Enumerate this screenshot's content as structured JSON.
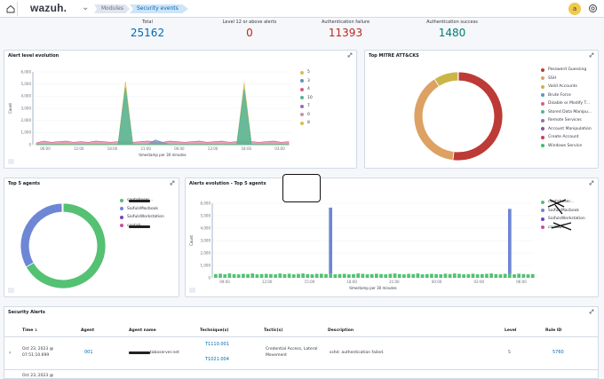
{
  "header": {
    "logo": "wazuh.",
    "breadcrumbs": [
      "Modules",
      "Security events ⓘ"
    ],
    "avatar_initial": "a"
  },
  "stats": [
    {
      "label": "Total",
      "value": "25162",
      "color": "#006bb4"
    },
    {
      "label": "Level 12 or above alerts",
      "value": "0",
      "color": "#bd271e"
    },
    {
      "label": "Authentication failure",
      "value": "11393",
      "color": "#bd271e"
    },
    {
      "label": "Authentication success",
      "value": "1480",
      "color": "#017d73"
    }
  ],
  "alert_level_panel": {
    "title": "Alert level evolution",
    "ylabel": "Count",
    "xlabel": "timestamp per 30 minutes"
  },
  "mitre_panel": {
    "title": "Top MITRE ATT&CKS"
  },
  "top_agents_panel": {
    "title": "Top 5 agents"
  },
  "alerts_evolution_panel": {
    "title": "Alerts evolution - Top 5 agents",
    "ylabel": "Count",
    "xlabel": "timestamp per 30 minutes"
  },
  "chart_data": [
    {
      "type": "area",
      "title": "Alert level evolution",
      "ylabel": "Count",
      "xlabel": "timestamp per 30 minutes",
      "ylim": [
        0,
        6000
      ],
      "yticks": [
        "0",
        "1,000",
        "2,000",
        "3,000",
        "4,000",
        "5,000",
        "6,000"
      ],
      "xticks": [
        "06:00",
        "12:00",
        "18:00",
        "21:00",
        "06:00",
        "12:00",
        "18:00",
        "03:00"
      ],
      "legend_placement": "right",
      "series": [
        {
          "name": "5",
          "color": "#d6bf57",
          "values": [
            20,
            30,
            25,
            40,
            60,
            30,
            25,
            30,
            40,
            35,
            30,
            25,
            5200,
            30,
            40,
            30,
            25,
            30,
            20,
            25,
            30,
            25,
            30,
            25,
            20,
            30,
            25,
            30,
            5100,
            30,
            25,
            20,
            25,
            30,
            25
          ]
        },
        {
          "name": "3",
          "color": "#6092c0",
          "values": [
            0,
            0,
            0,
            0,
            0,
            0,
            0,
            0,
            0,
            0,
            0,
            0,
            0,
            0,
            0,
            0,
            400,
            200,
            0,
            0,
            0,
            0,
            0,
            0,
            0,
            0,
            0,
            0,
            0,
            0,
            0,
            0,
            0,
            0,
            0
          ]
        },
        {
          "name": "4",
          "color": "#d36086",
          "values": [
            150,
            300,
            200,
            250,
            300,
            200,
            250,
            200,
            300,
            250,
            200,
            250,
            300,
            200,
            250,
            300,
            250,
            200,
            300,
            250,
            200,
            250,
            300,
            200,
            250,
            300,
            200,
            250,
            300,
            250,
            200,
            250,
            300,
            200,
            250
          ]
        },
        {
          "name": "10",
          "color": "#54b399",
          "values": [
            20,
            30,
            25,
            30,
            25,
            20,
            30,
            25,
            20,
            30,
            25,
            20,
            4700,
            25,
            30,
            20,
            25,
            30,
            20,
            25,
            30,
            20,
            25,
            30,
            20,
            25,
            30,
            20,
            4600,
            25,
            30,
            20,
            25,
            30,
            20
          ]
        },
        {
          "name": "7",
          "color": "#9170b8",
          "values": [
            10,
            15,
            10,
            12,
            15,
            10,
            12,
            15,
            10,
            12,
            15,
            10,
            15,
            10,
            12,
            15,
            10,
            12,
            15,
            10,
            12,
            15,
            10,
            12,
            15,
            10,
            12,
            15,
            10,
            12,
            15,
            10,
            12,
            15,
            10
          ]
        },
        {
          "name": "0",
          "color": "#ca8eae",
          "values": [
            5,
            5,
            5,
            5,
            5,
            5,
            5,
            5,
            5,
            5,
            5,
            5,
            5,
            5,
            5,
            5,
            5,
            5,
            5,
            5,
            5,
            5,
            5,
            5,
            5,
            5,
            5,
            5,
            5,
            5,
            5,
            5,
            5,
            5,
            5
          ]
        },
        {
          "name": "8",
          "color": "#d6bf57",
          "values": [
            5,
            5,
            5,
            5,
            5,
            5,
            5,
            5,
            5,
            5,
            5,
            5,
            5,
            5,
            5,
            5,
            5,
            5,
            5,
            5,
            5,
            5,
            5,
            5,
            5,
            5,
            5,
            5,
            5,
            5,
            5,
            5,
            5,
            5,
            5
          ]
        }
      ]
    },
    {
      "type": "pie",
      "title": "Top MITRE ATT&CKS",
      "legend_placement": "right",
      "slices": [
        {
          "name": "Password Guessing",
          "value": 52,
          "color": "#bd3a36"
        },
        {
          "name": "SSH",
          "value": 39,
          "color": "#dca163"
        },
        {
          "name": "Valid Accounts",
          "value": 9,
          "color": "#cbb546"
        },
        {
          "name": "Brute Force",
          "value": 0.01,
          "color": "#6092c0"
        },
        {
          "name": "Disable or Modify T...",
          "value": 0.01,
          "color": "#d36086"
        },
        {
          "name": "Stored Data Manipu...",
          "value": 0.01,
          "color": "#54b399"
        },
        {
          "name": "Remote Services",
          "value": 0.01,
          "color": "#9170b8"
        },
        {
          "name": "Account Manipulation",
          "value": 0.01,
          "color": "#8b4fa9"
        },
        {
          "name": "Create Account",
          "value": 0.01,
          "color": "#ca3a6b"
        },
        {
          "name": "Windows Service",
          "value": 0.01,
          "color": "#3ebf6e"
        }
      ]
    },
    {
      "type": "pie",
      "title": "Top 5 agents",
      "legend_placement": "right",
      "slices": [
        {
          "name": "contaboser...",
          "value": 67,
          "color": "#54c173"
        },
        {
          "name": "SaifulsMacbook",
          "value": 33,
          "color": "#6e86d6"
        },
        {
          "name": "SaifulsWorkstation",
          "value": 0.2,
          "color": "#7a3fbf"
        },
        {
          "name": "contab...",
          "value": 0.2,
          "color": "#c84ea3"
        }
      ]
    },
    {
      "type": "bar",
      "title": "Alerts evolution - Top 5 agents",
      "ylabel": "Count",
      "xlabel": "timestamp per 30 minutes",
      "ylim": [
        0,
        6000
      ],
      "yticks": [
        "0",
        "1,000",
        "2,000",
        "3,000",
        "4,000",
        "5,000",
        "6,000"
      ],
      "xticks": [
        "09:00",
        "12:00",
        "15:00",
        "18:00",
        "21:00",
        "00:00",
        "03:00",
        "06:00"
      ],
      "legend_placement": "right",
      "series": [
        {
          "name": "contaboser...",
          "color": "#54c173",
          "values": [
            300,
            330,
            280,
            350,
            300,
            280,
            320,
            300,
            350,
            280,
            300,
            320,
            300,
            280,
            350,
            300,
            330,
            280,
            320,
            350,
            300,
            280,
            320,
            330,
            300,
            350,
            280,
            300,
            320,
            280,
            300,
            350,
            320,
            280,
            300,
            330,
            300,
            280,
            320,
            350,
            300,
            280,
            320,
            300,
            350,
            280,
            300,
            320,
            300,
            280,
            330,
            300,
            350,
            320,
            280,
            300,
            330,
            280,
            300,
            320,
            350,
            300,
            280,
            320,
            300,
            280,
            330,
            300,
            280,
            300
          ]
        },
        {
          "name": "SaifulsMacbook",
          "color": "#6e86d6",
          "values": [
            0,
            0,
            0,
            0,
            0,
            0,
            0,
            0,
            0,
            0,
            0,
            0,
            0,
            0,
            0,
            0,
            0,
            0,
            0,
            0,
            0,
            0,
            0,
            0,
            0,
            5300,
            0,
            0,
            0,
            0,
            0,
            0,
            0,
            0,
            0,
            0,
            0,
            0,
            0,
            0,
            0,
            0,
            0,
            0,
            0,
            0,
            0,
            0,
            0,
            0,
            0,
            0,
            0,
            0,
            0,
            0,
            0,
            0,
            0,
            0,
            0,
            0,
            0,
            0,
            5250,
            0,
            0,
            0,
            0,
            0
          ]
        }
      ]
    }
  ],
  "alert_level_legend": [
    "5",
    "3",
    "4",
    "10",
    "7",
    "0",
    "8"
  ],
  "mitre_legend": [
    "Password Guessing",
    "SSH",
    "Valid Accounts",
    "Brute Force",
    "Disable or Modify T...",
    "Stored Data Manipu...",
    "Remote Services",
    "Account Manipulation",
    "Create Account",
    "Windows Service"
  ],
  "agents_legend": [
    "contaboser...",
    "SaifulsMacbook",
    "SaifulsWorkstation",
    "contab..."
  ],
  "agents_evo_legend": [
    "contaboser...",
    "SaifulsMacbook",
    "SaifulsWorkstation",
    "contab..."
  ],
  "security_alerts": {
    "title": "Security Alerts",
    "columns": [
      "Time",
      "Agent",
      "Agent name",
      "Technique(s)",
      "Tactic(s)",
      "Description",
      "Level",
      "Rule ID"
    ],
    "rows": [
      {
        "time": "Oct 23, 2023 @ 07:51:10.699",
        "agent": "001",
        "agent_name": "taboserver.net",
        "techniques": [
          "T1110.001",
          "T1021.004"
        ],
        "tactics": "Credential Access, Lateral Movement",
        "description": "sshd: authentication failed.",
        "level": "5",
        "rule_id": "5760"
      },
      {
        "time": "Oct 23, 2023 @"
      }
    ]
  }
}
